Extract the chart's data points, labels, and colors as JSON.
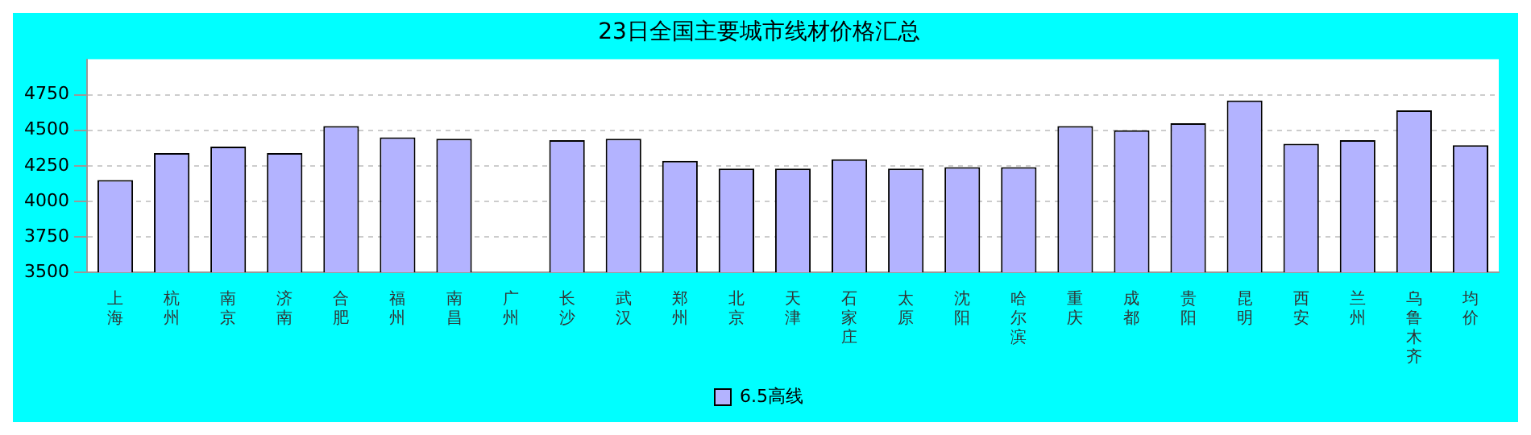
{
  "chart_data": {
    "type": "bar",
    "title": "23日全国主要城市线材价格汇总",
    "categories": [
      "上海",
      "杭州",
      "南京",
      "济南",
      "合肥",
      "福州",
      "南昌",
      "广州",
      "长沙",
      "武汉",
      "郑州",
      "北京",
      "天津",
      "石家庄",
      "太原",
      "沈阳",
      "哈尔滨",
      "重庆",
      "成都",
      "贵阳",
      "昆明",
      "西安",
      "兰州",
      "乌鲁木齐",
      "均价"
    ],
    "series": [
      {
        "name": "6.5高线",
        "color": "#b3b3ff",
        "values": [
          4150,
          4340,
          4385,
          4340,
          4530,
          4450,
          4440,
          null,
          4430,
          4440,
          4285,
          4230,
          4230,
          4295,
          4230,
          4240,
          4240,
          4530,
          4500,
          4550,
          4710,
          4405,
          4430,
          4640,
          4395
        ]
      }
    ],
    "ylim": [
      3500,
      5000
    ],
    "yticks": [
      3500,
      3750,
      4000,
      4250,
      4500,
      4750
    ],
    "grid": "y",
    "legend": "bottom"
  }
}
